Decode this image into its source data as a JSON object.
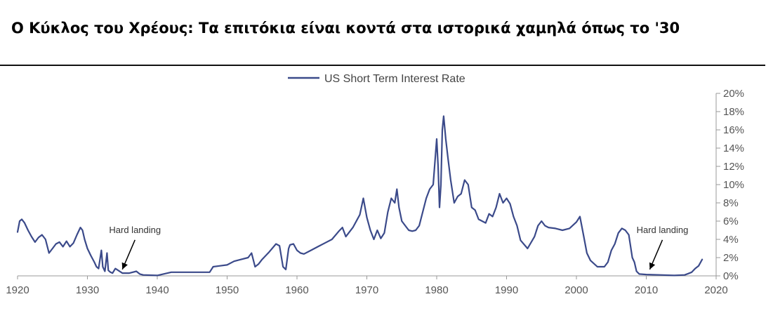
{
  "page": {
    "title": "Ο Κύκλος του Χρέους: Τα επιτόκια είναι κοντά στα ιστορικά χαμηλά όπως το '30"
  },
  "chart_data": {
    "type": "line",
    "title": "",
    "xlabel": "",
    "ylabel": "",
    "xlim": [
      1920,
      2020
    ],
    "ylim": [
      0,
      20
    ],
    "y_unit": "%",
    "grid": false,
    "legend_position": "top-center",
    "x_ticks": [
      1920,
      1930,
      1940,
      1950,
      1960,
      1970,
      1980,
      1990,
      2000,
      2010,
      2020
    ],
    "y_ticks": [
      0,
      2,
      4,
      6,
      8,
      10,
      12,
      14,
      16,
      18,
      20
    ],
    "x_tick_labels": [
      "1920",
      "1930",
      "1940",
      "1950",
      "1960",
      "1970",
      "1980",
      "1990",
      "2000",
      "2010",
      "2020"
    ],
    "y_tick_labels": [
      "0%",
      "2%",
      "4%",
      "6%",
      "8%",
      "10%",
      "12%",
      "14%",
      "16%",
      "18%",
      "20%"
    ],
    "colors": {
      "series": "#3b4a8a",
      "axis": "#999999",
      "annotation": "#000000"
    },
    "series": [
      {
        "name": "US Short Term Interest Rate",
        "x": [
          1920.0,
          1920.3,
          1920.6,
          1921.0,
          1921.5,
          1922.0,
          1922.5,
          1923.0,
          1923.5,
          1924.0,
          1924.5,
          1925.0,
          1925.5,
          1926.0,
          1926.5,
          1927.0,
          1927.5,
          1928.0,
          1928.5,
          1929.0,
          1929.3,
          1929.6,
          1930.0,
          1930.5,
          1931.0,
          1931.3,
          1931.6,
          1932.0,
          1932.2,
          1932.5,
          1932.8,
          1933.0,
          1933.3,
          1933.6,
          1934.0,
          1935.0,
          1936.0,
          1937.0,
          1937.5,
          1938.0,
          1940.0,
          1942.0,
          1946.0,
          1947.5,
          1948.0,
          1949.0,
          1950.0,
          1951.0,
          1952.0,
          1953.0,
          1953.5,
          1954.0,
          1954.5,
          1955.0,
          1956.0,
          1957.0,
          1957.5,
          1958.0,
          1958.4,
          1958.8,
          1959.0,
          1959.5,
          1960.0,
          1960.5,
          1961.0,
          1962.0,
          1963.0,
          1964.0,
          1965.0,
          1966.0,
          1966.5,
          1967.0,
          1968.0,
          1969.0,
          1969.5,
          1970.0,
          1970.5,
          1971.0,
          1971.5,
          1972.0,
          1972.5,
          1973.0,
          1973.5,
          1974.0,
          1974.3,
          1974.6,
          1975.0,
          1975.5,
          1976.0,
          1976.5,
          1977.0,
          1977.5,
          1978.0,
          1978.5,
          1979.0,
          1979.5,
          1980.0,
          1980.2,
          1980.4,
          1980.6,
          1980.8,
          1981.0,
          1981.3,
          1981.6,
          1982.0,
          1982.5,
          1983.0,
          1983.5,
          1984.0,
          1984.5,
          1985.0,
          1985.5,
          1986.0,
          1986.5,
          1987.0,
          1987.5,
          1988.0,
          1988.5,
          1989.0,
          1989.5,
          1990.0,
          1990.5,
          1991.0,
          1991.5,
          1992.0,
          1993.0,
          1994.0,
          1994.5,
          1995.0,
          1995.5,
          1996.0,
          1997.0,
          1998.0,
          1999.0,
          2000.0,
          2000.5,
          2001.0,
          2001.5,
          2002.0,
          2003.0,
          2004.0,
          2004.5,
          2005.0,
          2005.5,
          2006.0,
          2006.5,
          2007.0,
          2007.5,
          2008.0,
          2008.3,
          2008.6,
          2009.0,
          2010.0,
          2012.0,
          2014.0,
          2015.5,
          2016.0,
          2016.5,
          2017.0,
          2017.5,
          2018.0
        ],
        "y": [
          4.8,
          6.0,
          6.2,
          5.8,
          5.0,
          4.3,
          3.7,
          4.2,
          4.5,
          4.0,
          2.5,
          3.0,
          3.5,
          3.7,
          3.2,
          3.8,
          3.2,
          3.6,
          4.5,
          5.3,
          5.0,
          4.0,
          3.0,
          2.2,
          1.5,
          1.0,
          0.8,
          2.8,
          1.0,
          0.5,
          2.5,
          0.6,
          0.4,
          0.3,
          0.8,
          0.3,
          0.3,
          0.5,
          0.2,
          0.1,
          0.05,
          0.4,
          0.4,
          0.4,
          1.0,
          1.1,
          1.2,
          1.6,
          1.8,
          2.0,
          2.5,
          1.0,
          1.3,
          1.8,
          2.6,
          3.5,
          3.3,
          1.0,
          0.7,
          3.0,
          3.4,
          3.5,
          2.8,
          2.5,
          2.4,
          2.8,
          3.2,
          3.6,
          4.0,
          4.9,
          5.3,
          4.3,
          5.3,
          6.7,
          8.5,
          6.4,
          5.0,
          4.0,
          5.0,
          4.1,
          4.7,
          7.0,
          8.5,
          8.0,
          9.5,
          7.5,
          6.0,
          5.5,
          5.0,
          4.9,
          5.0,
          5.5,
          7.0,
          8.5,
          9.5,
          10.0,
          15.0,
          12.0,
          7.5,
          10.0,
          16.0,
          17.5,
          15.0,
          13.0,
          10.5,
          8.0,
          8.7,
          9.0,
          10.5,
          10.0,
          7.5,
          7.2,
          6.2,
          6.0,
          5.8,
          6.8,
          6.5,
          7.5,
          9.0,
          8.0,
          8.5,
          7.9,
          6.5,
          5.5,
          3.9,
          3.0,
          4.3,
          5.5,
          6.0,
          5.5,
          5.3,
          5.2,
          5.0,
          5.2,
          5.9,
          6.5,
          4.5,
          2.5,
          1.7,
          1.0,
          1.0,
          1.5,
          2.8,
          3.5,
          4.7,
          5.2,
          5.0,
          4.5,
          2.0,
          1.5,
          0.5,
          0.2,
          0.15,
          0.1,
          0.05,
          0.1,
          0.25,
          0.4,
          0.8,
          1.1,
          1.8
        ]
      }
    ],
    "annotations": [
      {
        "text": "Hard landing",
        "x": 1935,
        "y": 0.4
      },
      {
        "text": "Hard landing",
        "x": 2010.5,
        "y": 0.4
      }
    ]
  }
}
